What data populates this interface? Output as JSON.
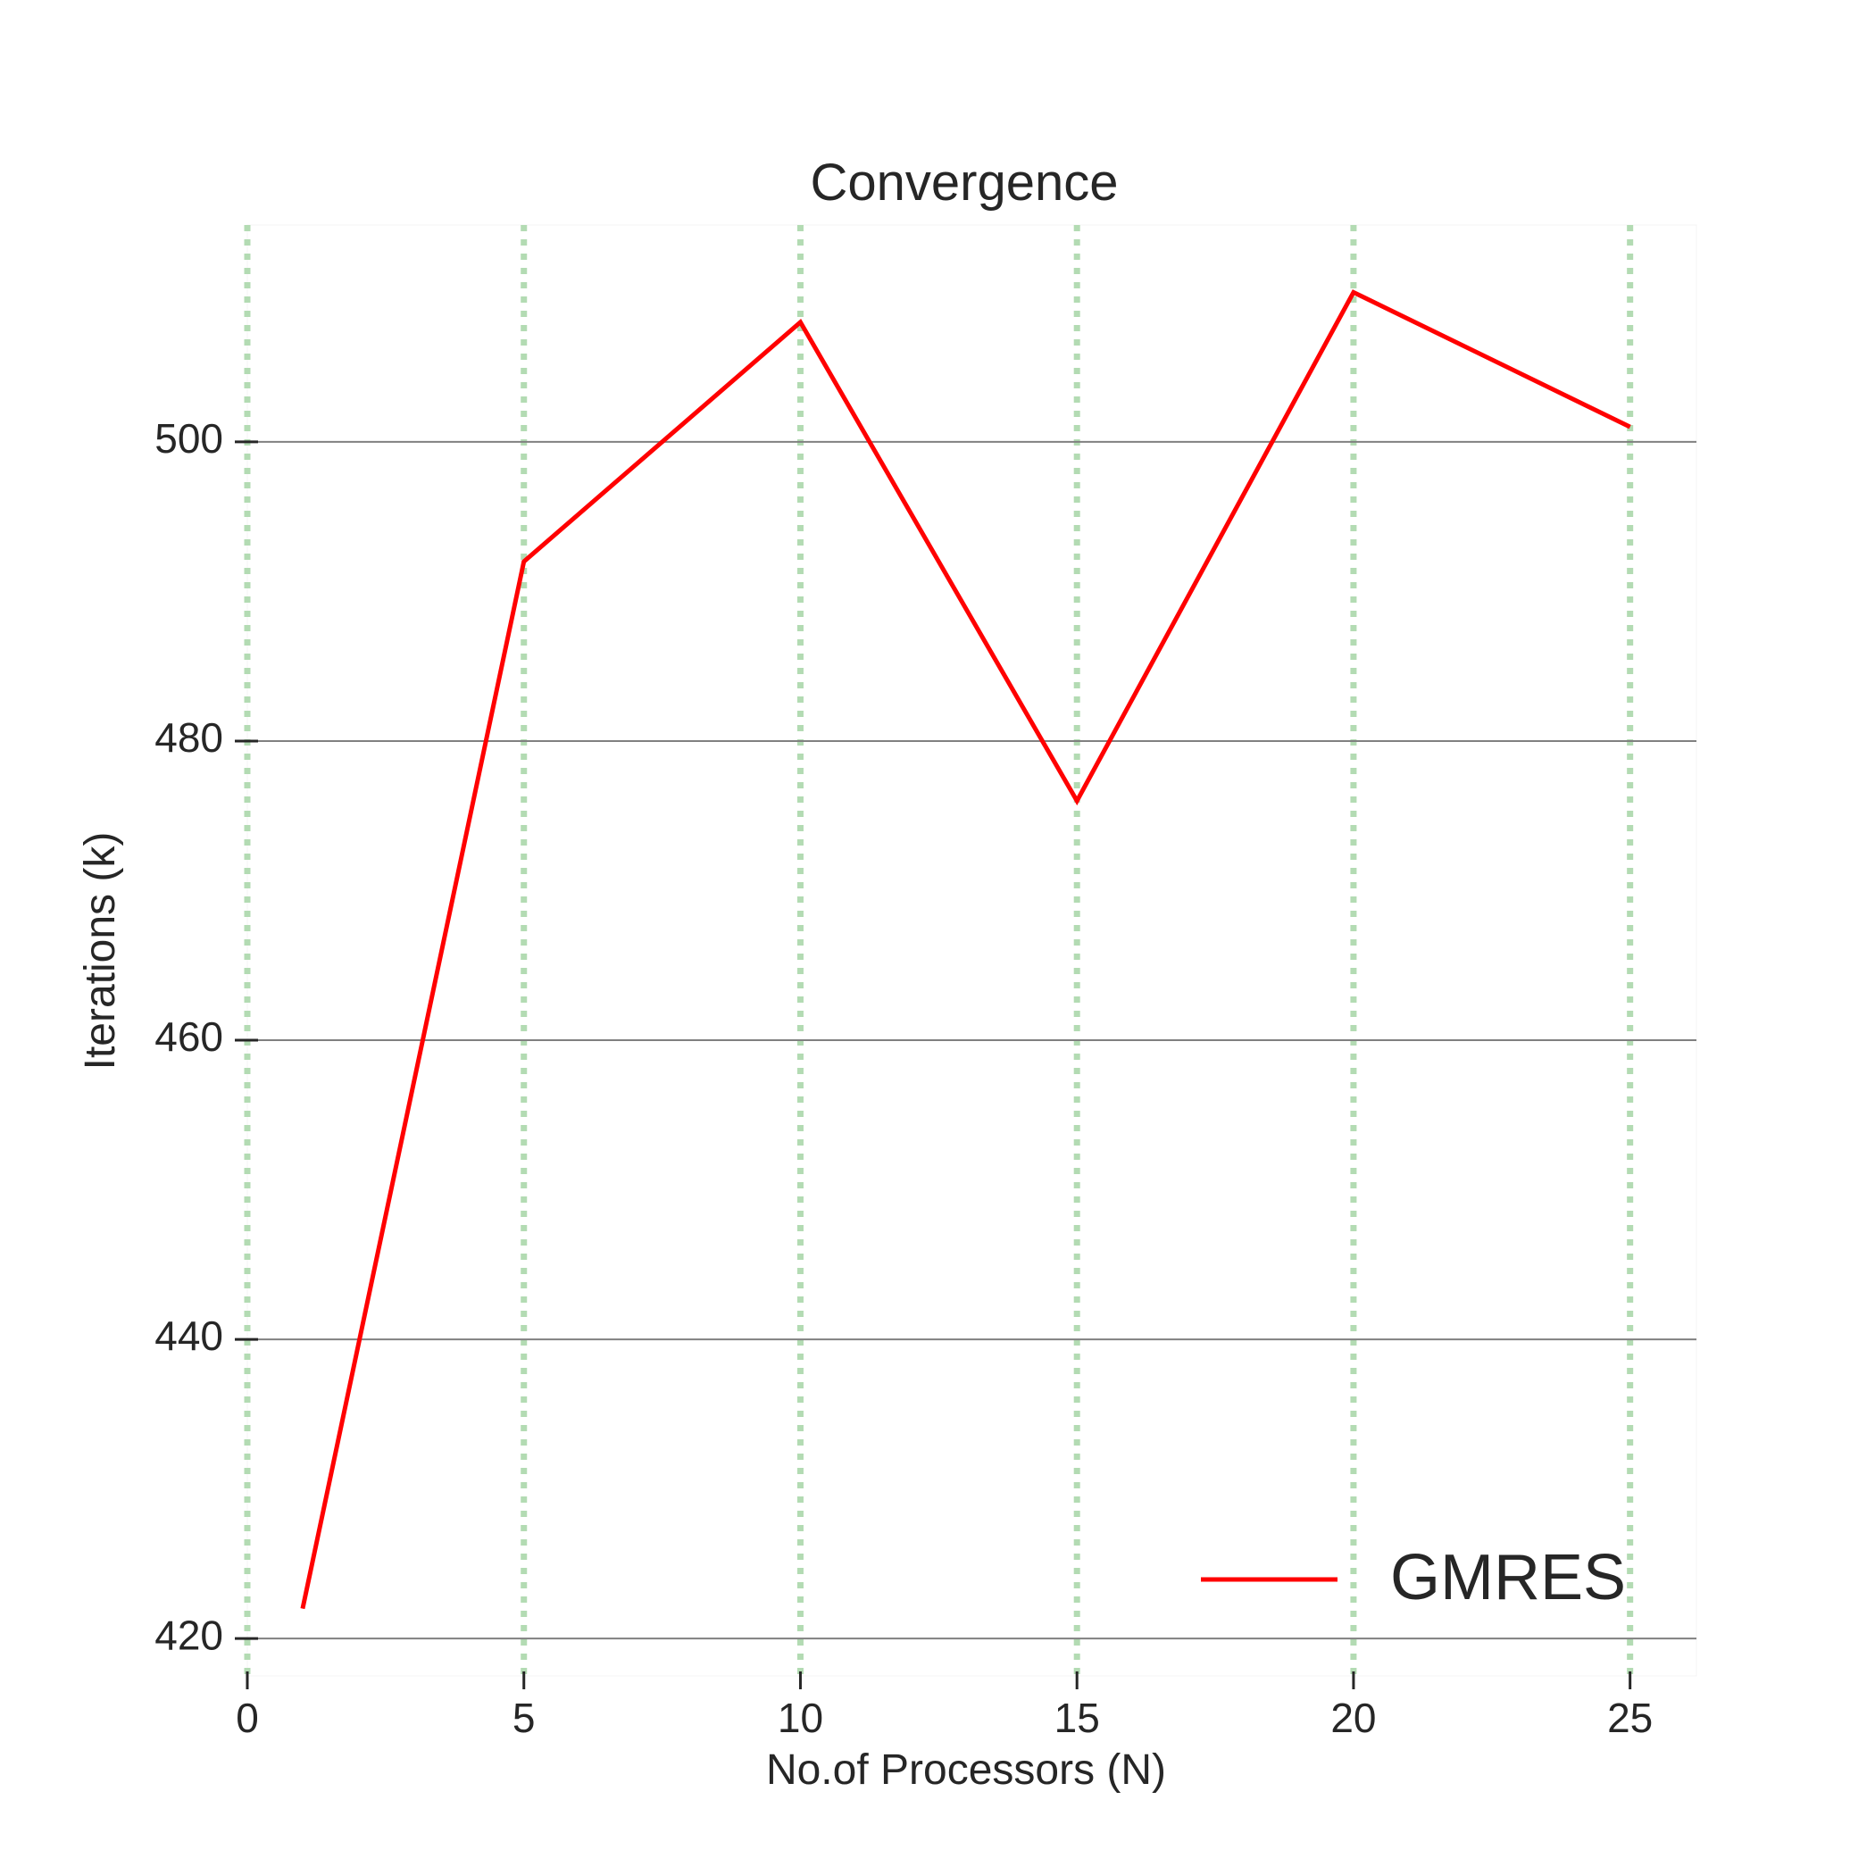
{
  "chart_data": {
    "type": "line",
    "title": "Convergence",
    "xlabel": "No.of Processors (N)",
    "ylabel": "Iterations (k)",
    "xlim": [
      0,
      26.2
    ],
    "ylim": [
      417.5,
      514.5
    ],
    "xticks": [
      0,
      5,
      10,
      15,
      20,
      25
    ],
    "yticks": [
      420,
      440,
      460,
      480,
      500
    ],
    "xgrid": "on (dotted green)",
    "ygrid": "on (solid gray)",
    "legend_position": "lower-right",
    "series": [
      {
        "name": "GMRES",
        "color": "#ff0000",
        "x": [
          1,
          5,
          10,
          15,
          20,
          25
        ],
        "y": [
          422,
          492,
          508,
          476,
          510,
          501
        ]
      }
    ]
  },
  "colors": {
    "line": "#ff0000",
    "xgrid": "#b3dbb3",
    "ygrid": "#808080",
    "text": "#262626",
    "background": "#ffffff"
  }
}
